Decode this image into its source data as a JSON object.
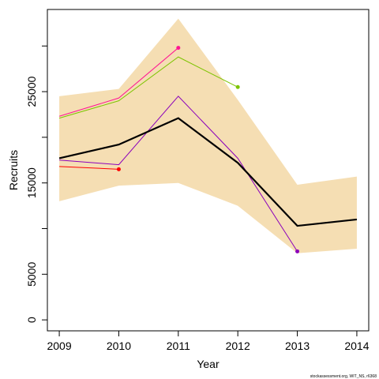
{
  "chart_data": {
    "type": "line",
    "xlabel": "Year",
    "ylabel": "Recruits",
    "credit": "stockassessment.org, WIT_NS, r6368",
    "x": [
      2009,
      2010,
      2011,
      2012,
      2013,
      2014
    ],
    "xlim": [
      2008.8,
      2014.2
    ],
    "ylim": [
      -1200,
      34000
    ],
    "x_ticks": [
      2009,
      2010,
      2011,
      2012,
      2013,
      2014
    ],
    "y_ticks": [
      0,
      5000,
      10000,
      15000,
      20000,
      25000,
      30000
    ],
    "y_tick_labels": [
      "0",
      "5000",
      "",
      "15000",
      "",
      "25000",
      ""
    ],
    "grid": false,
    "legend": "none",
    "band": {
      "color": "#f5deb3",
      "lower": [
        13000,
        14700,
        15000,
        12500,
        7300,
        7800
      ],
      "upper": [
        24500,
        25300,
        33000,
        24100,
        14800,
        15700
      ]
    },
    "estimate": {
      "color": "#000000",
      "values": [
        17700,
        19200,
        22100,
        17200,
        10300,
        11000
      ]
    },
    "series": [
      {
        "color": "#ff0000",
        "x": [
          2009,
          2010
        ],
        "values": [
          16800,
          16500
        ]
      },
      {
        "color": "#ff1493",
        "x": [
          2009,
          2010,
          2011
        ],
        "values": [
          22300,
          24300,
          29800
        ]
      },
      {
        "color": "#7cc400",
        "x": [
          2009,
          2010,
          2011,
          2012
        ],
        "values": [
          22100,
          24000,
          28800,
          25500
        ]
      },
      {
        "color": "#8b00bb",
        "x": [
          2009,
          2010,
          2011,
          2012,
          2013
        ],
        "values": [
          17500,
          17000,
          24500,
          17700,
          7500
        ]
      }
    ]
  }
}
